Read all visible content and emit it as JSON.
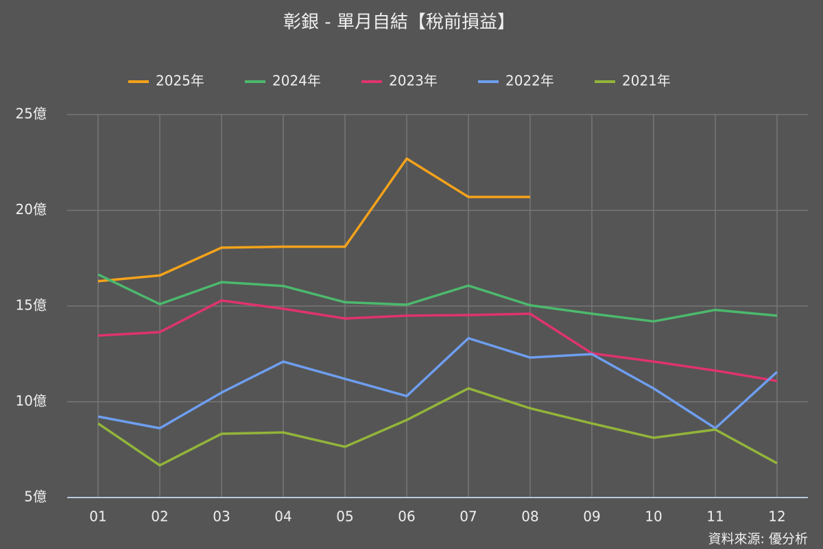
{
  "chart_data": {
    "type": "line",
    "title": "彰銀 - 單月自結【稅前損益】",
    "source": "資料來源: 優分析",
    "categories": [
      "01",
      "02",
      "03",
      "04",
      "05",
      "06",
      "07",
      "08",
      "09",
      "10",
      "11",
      "12"
    ],
    "series": [
      {
        "name": "2025年",
        "color": "#f5a31a",
        "values": [
          16.3,
          16.6,
          18.05,
          18.1,
          18.1,
          22.7,
          20.7,
          20.7,
          null,
          null,
          null,
          null
        ]
      },
      {
        "name": "2024年",
        "color": "#4cb96d",
        "values": [
          16.65,
          15.1,
          16.25,
          16.05,
          15.2,
          15.07,
          16.07,
          15.04,
          14.6,
          14.2,
          14.8,
          14.5
        ]
      },
      {
        "name": "2023年",
        "color": "#e0336e",
        "values": [
          13.46,
          13.64,
          15.29,
          14.86,
          14.35,
          14.5,
          14.53,
          14.6,
          12.53,
          12.1,
          11.63,
          11.09
        ]
      },
      {
        "name": "2022年",
        "color": "#6e9ef0",
        "values": [
          9.23,
          8.62,
          10.48,
          12.1,
          11.2,
          10.3,
          13.32,
          12.31,
          12.49,
          10.7,
          8.62,
          11.56
        ]
      },
      {
        "name": "2021年",
        "color": "#93b53a",
        "values": [
          8.87,
          6.68,
          8.33,
          8.4,
          7.65,
          9.05,
          10.7,
          9.66,
          8.87,
          8.12,
          8.55,
          6.79
        ]
      }
    ],
    "ylim": [
      5,
      25
    ],
    "yticks": [
      {
        "value": 5,
        "label": "5億"
      },
      {
        "value": 10,
        "label": "10億"
      },
      {
        "value": 15,
        "label": "15億"
      },
      {
        "value": 20,
        "label": "20億"
      },
      {
        "value": 25,
        "label": "25億"
      }
    ],
    "grid": true
  }
}
